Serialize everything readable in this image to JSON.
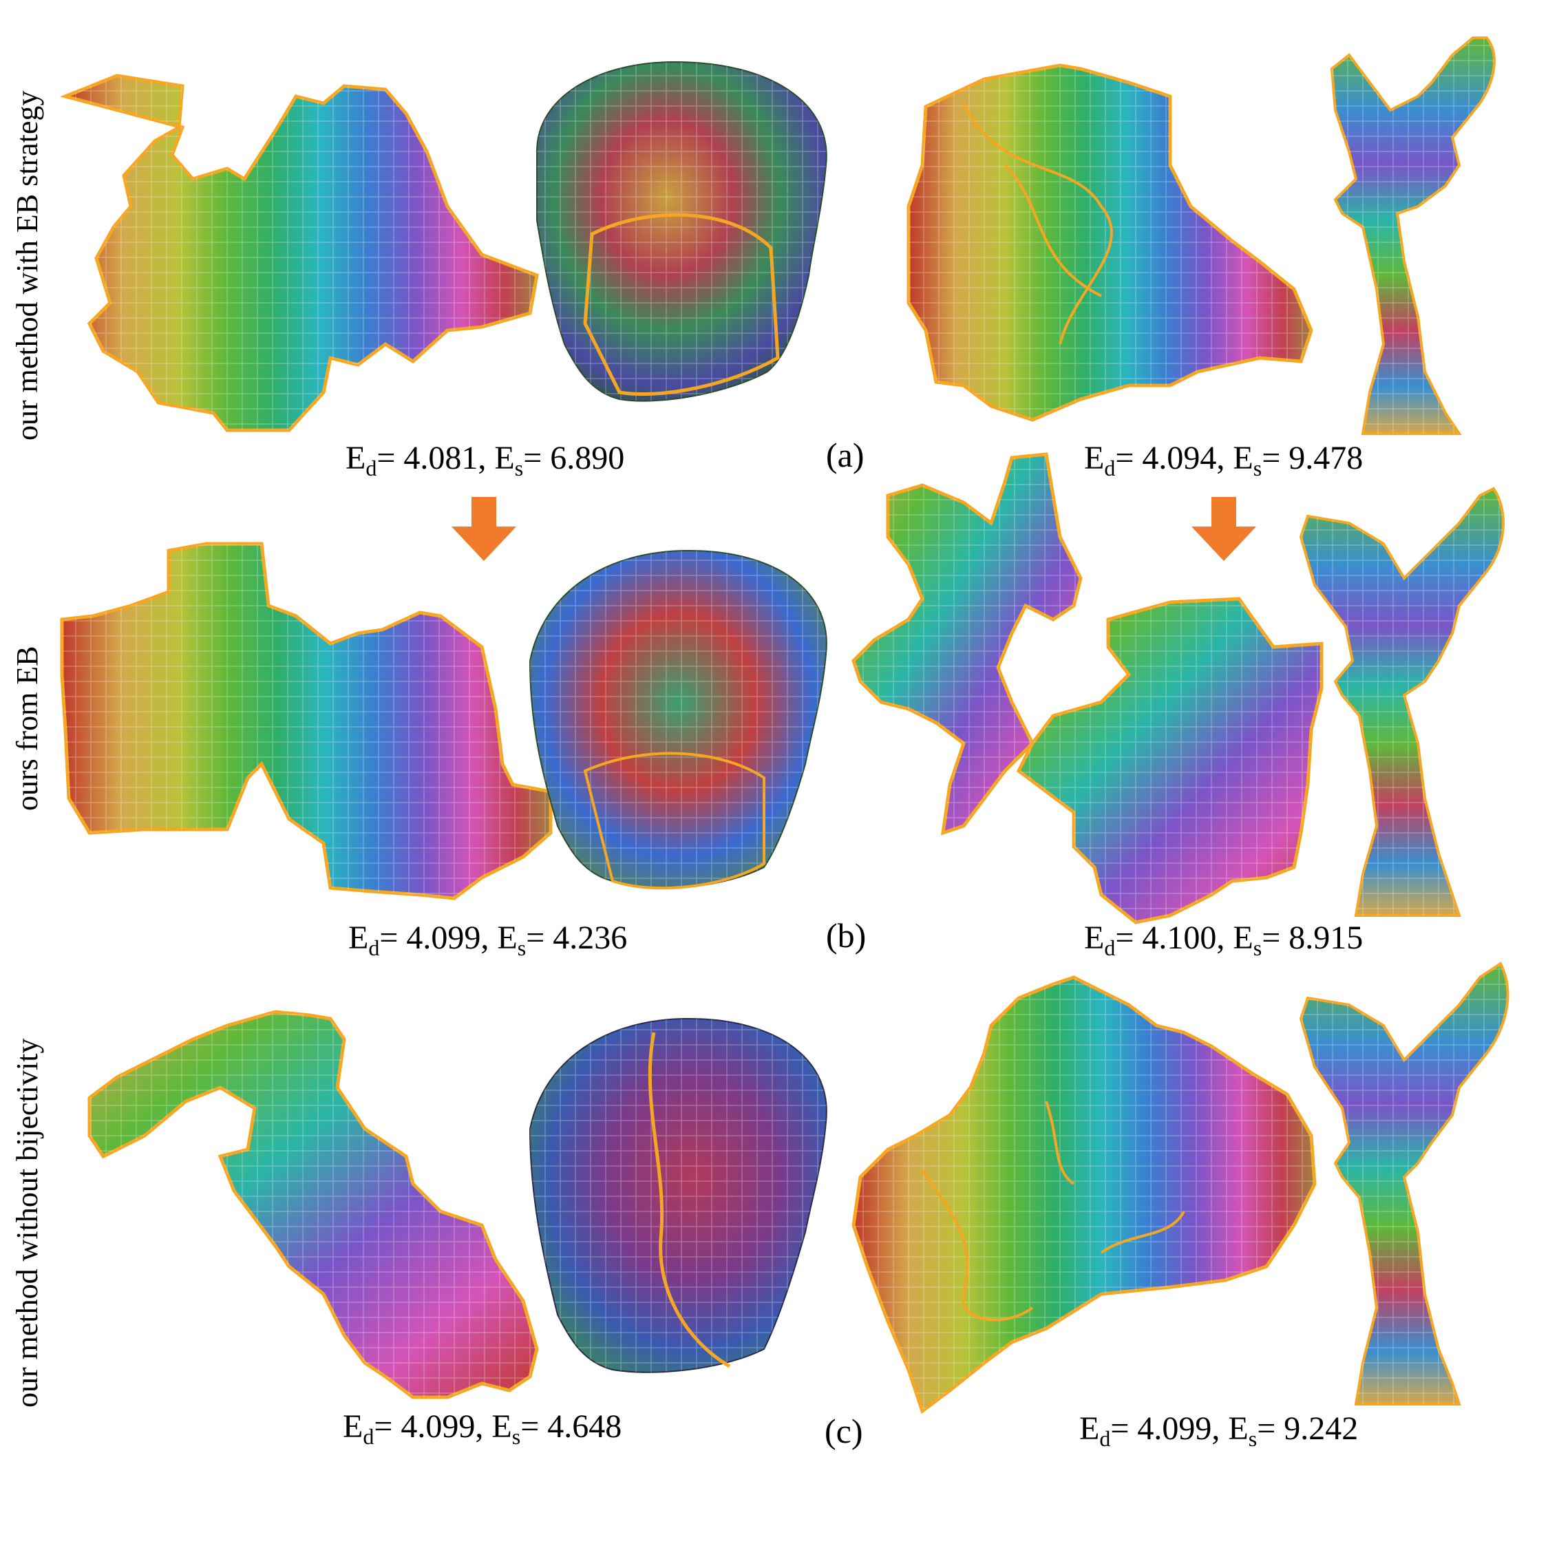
{
  "rows": [
    {
      "label": "our method with EB strategy",
      "panel": "(a)",
      "captions": [
        {
          "ed_symbol": "E",
          "ed_sub": "d",
          "ed_value": "= 4.081,",
          "es_symbol": "E",
          "es_sub": "s",
          "es_value": "= 6.890"
        },
        {
          "ed_symbol": "E",
          "ed_sub": "d",
          "ed_value": "= 4.094,",
          "es_symbol": "E",
          "es_sub": "s",
          "es_value": "= 9.478"
        }
      ]
    },
    {
      "label": "ours from EB",
      "panel": "(b)",
      "captions": [
        {
          "ed_symbol": "E",
          "ed_sub": "d",
          "ed_value": "= 4.099,",
          "es_symbol": "E",
          "es_sub": "s",
          "es_value": "= 4.236"
        },
        {
          "ed_symbol": "E",
          "ed_sub": "d",
          "ed_value": "= 4.100,",
          "es_symbol": "E",
          "es_sub": "s",
          "es_value": "= 8.915"
        }
      ]
    },
    {
      "label": "our method without bijectivity",
      "panel": "(c)",
      "captions": [
        {
          "ed_symbol": "E",
          "ed_sub": "d",
          "ed_value": "= 4.099,",
          "es_symbol": "E",
          "es_sub": "s",
          "es_value": "= 4.648"
        },
        {
          "ed_symbol": "E",
          "ed_sub": "d",
          "ed_value": "= 4.099,",
          "es_symbol": "E",
          "es_sub": "s",
          "es_value": "= 9.242"
        }
      ]
    }
  ],
  "colors": {
    "boundary": "#f5a623",
    "arrow": "#f07b2a",
    "palette": [
      "#c0392b",
      "#d4a84b",
      "#b9c23a",
      "#5fb83a",
      "#2fae6a",
      "#2bb5a8",
      "#3a8fd0",
      "#5a5fc8",
      "#9a55c8",
      "#d454b8",
      "#c24070",
      "#7a6040"
    ]
  }
}
